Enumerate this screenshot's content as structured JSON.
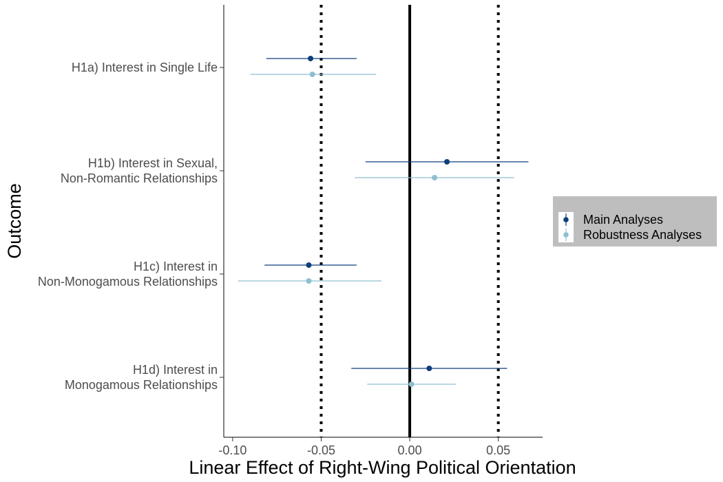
{
  "chart_data": {
    "type": "forest",
    "title": "",
    "xlabel": "Linear Effect of Right-Wing Political Orientation",
    "ylabel": "Outcome",
    "xlim": [
      -0.105,
      0.075
    ],
    "x_ticks": [
      -0.1,
      -0.05,
      0.0,
      0.05
    ],
    "x_tick_labels": [
      "-0.10",
      "-0.05",
      "0.00",
      "0.05"
    ],
    "reference_lines": {
      "solid": [
        0.0
      ],
      "dotted": [
        -0.05,
        0.05
      ]
    },
    "grid": false,
    "legend_position": "right",
    "categories": [
      {
        "label_lines": [
          "H1a) Interest in Single Life"
        ]
      },
      {
        "label_lines": [
          "H1b) Interest in Sexual,",
          "Non-Romantic Relationships"
        ]
      },
      {
        "label_lines": [
          "H1c) Interest in",
          "Non-Monogamous Relationships"
        ]
      },
      {
        "label_lines": [
          "H1d) Interest in",
          "Monogamous Relationships"
        ]
      }
    ],
    "series": [
      {
        "name": "Main Analyses",
        "color": "#0d3f7a",
        "estimates": [
          -0.056,
          0.021,
          -0.057,
          0.011
        ],
        "lower": [
          -0.081,
          -0.025,
          -0.082,
          -0.033
        ],
        "upper": [
          -0.03,
          0.067,
          -0.03,
          0.055
        ]
      },
      {
        "name": "Robustness Analyses",
        "color": "#8dbfd1",
        "estimates": [
          -0.055,
          0.014,
          -0.057,
          0.001
        ],
        "lower": [
          -0.09,
          -0.031,
          -0.097,
          -0.024
        ],
        "upper": [
          -0.019,
          0.059,
          -0.016,
          0.026
        ]
      }
    ]
  }
}
